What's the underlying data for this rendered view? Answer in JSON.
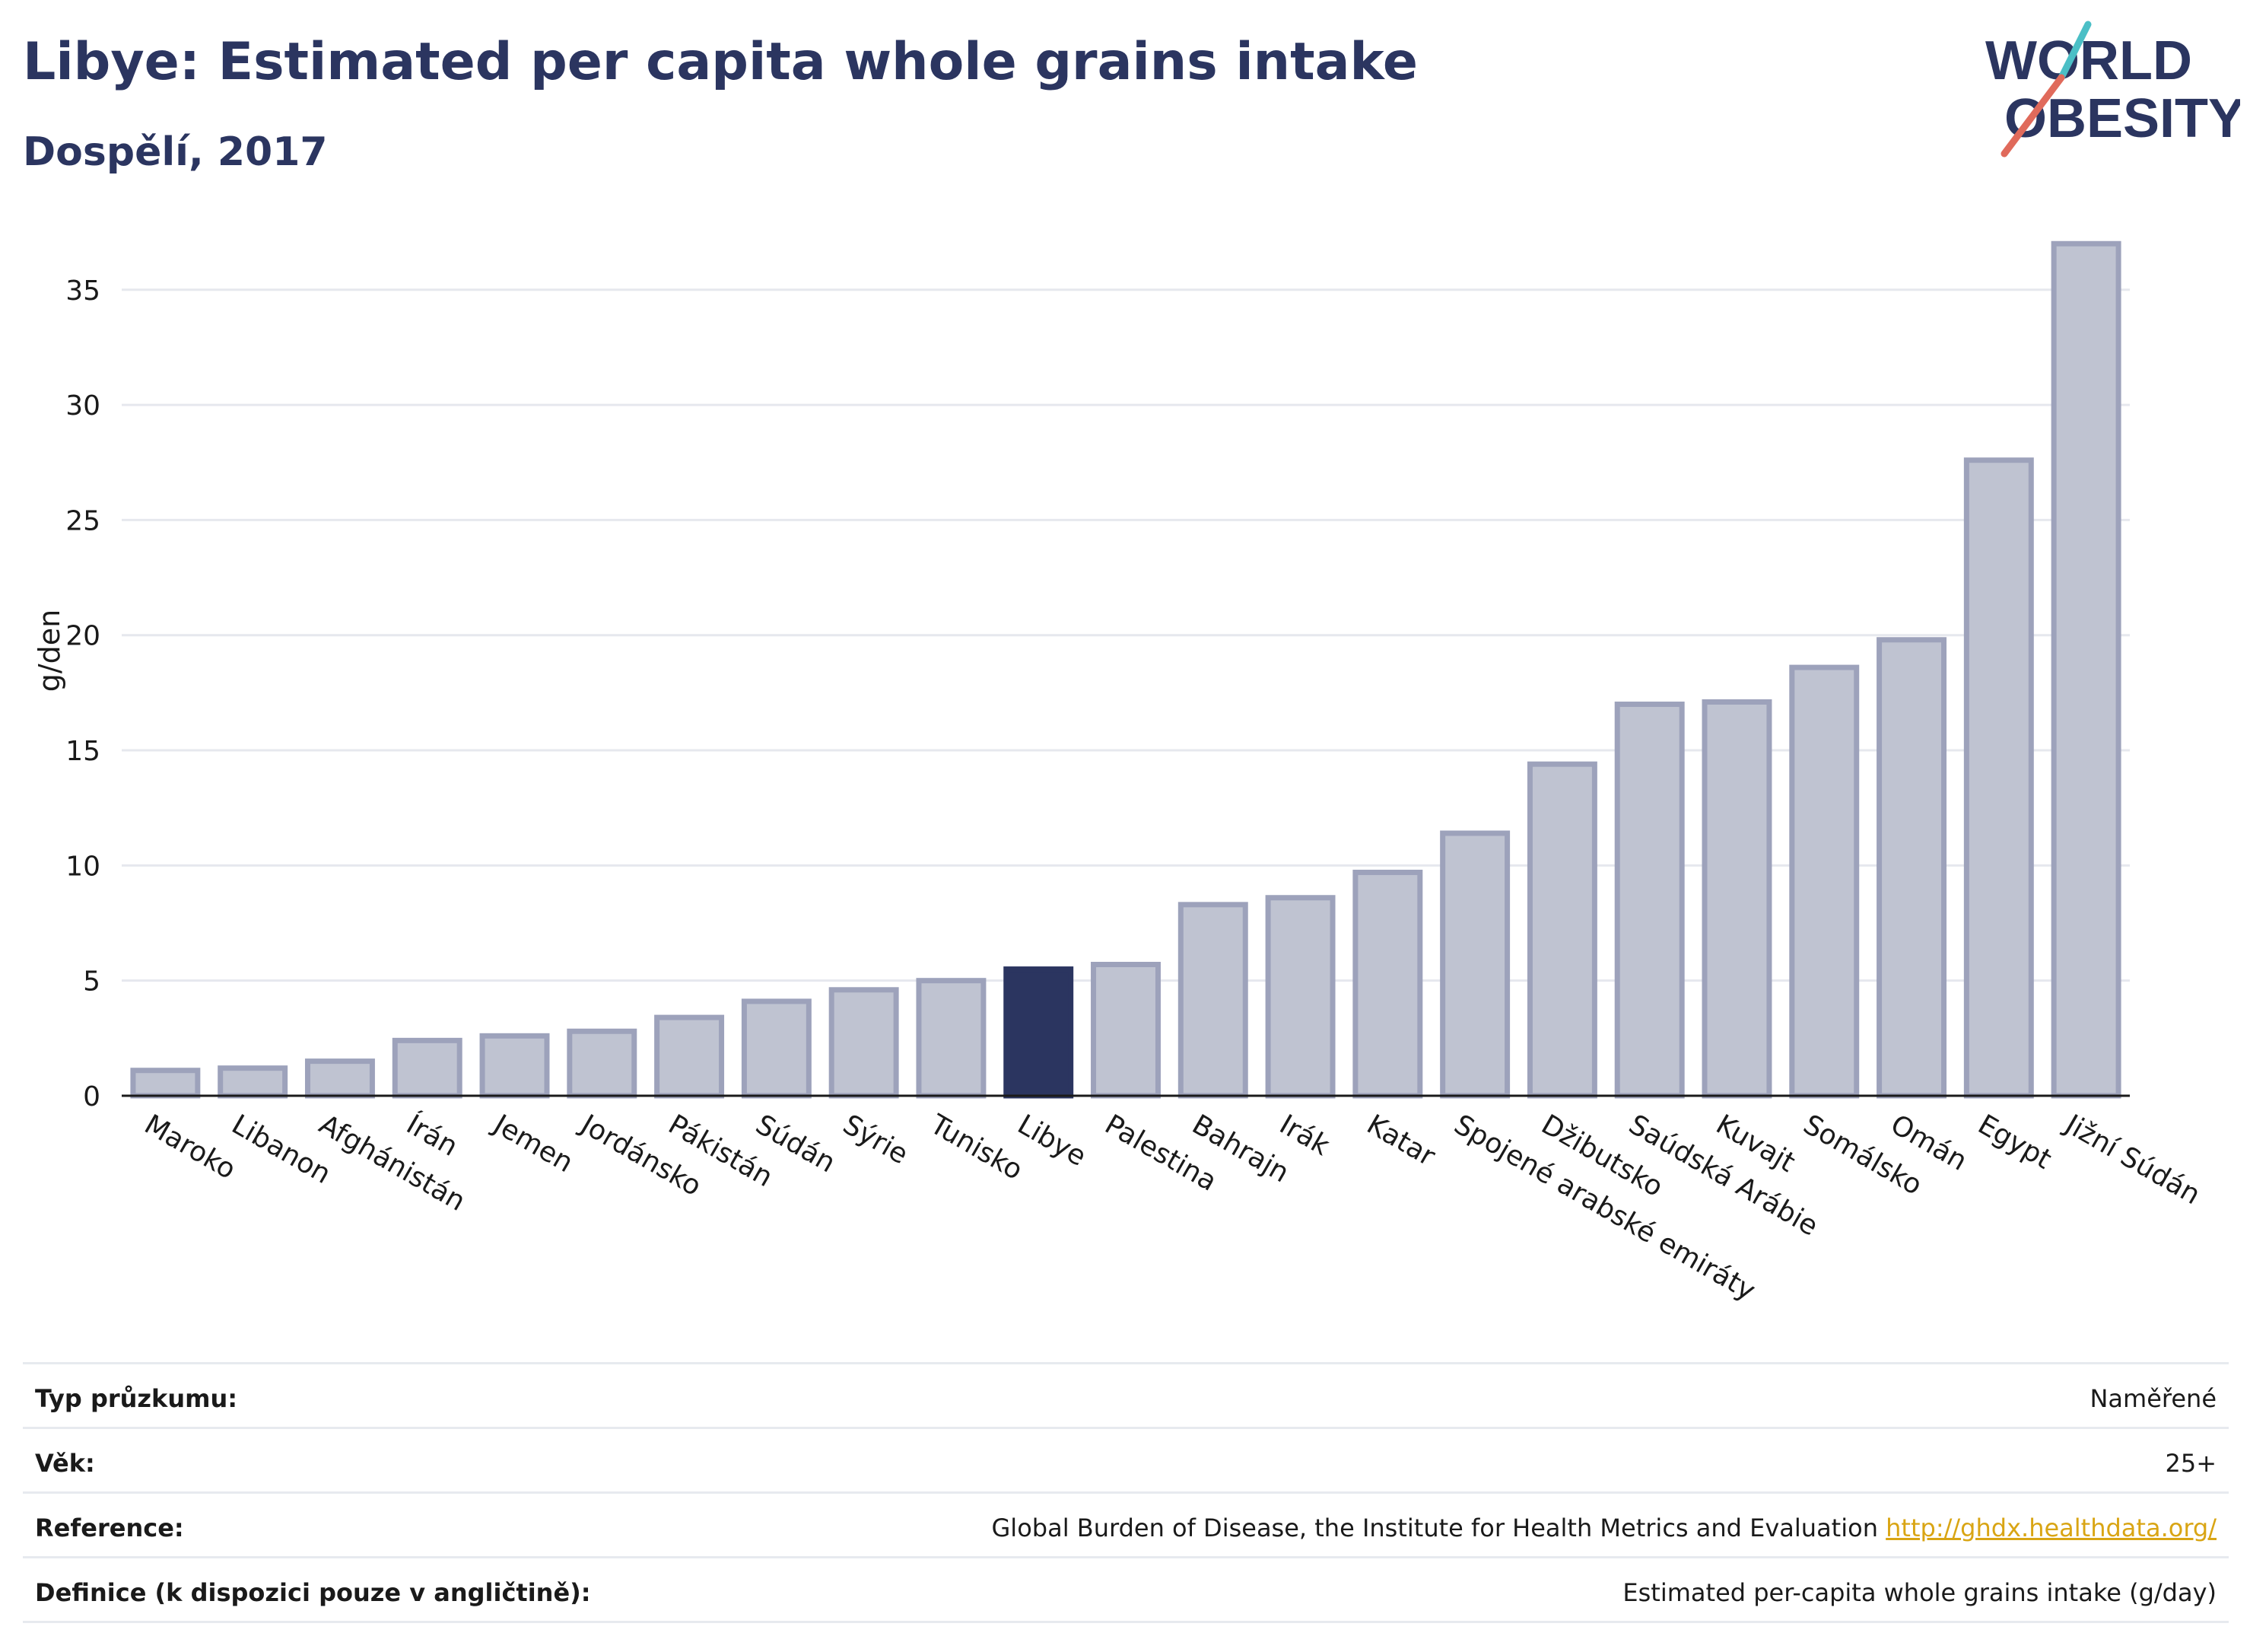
{
  "header": {
    "title": "Libye: Estimated per capita whole grains intake",
    "subtitle": "Dospělí, 2017"
  },
  "logo": {
    "line1": "WORLD",
    "line2": "OBESITY",
    "accent_colors": [
      "#4bbfc6",
      "#e06a5b"
    ]
  },
  "chart_data": {
    "type": "bar",
    "ylabel": "g/den",
    "ylim": [
      0,
      38
    ],
    "yticks": [
      0,
      5,
      10,
      15,
      20,
      25,
      30,
      35
    ],
    "grid": true,
    "highlight": "Libye",
    "colors": {
      "bar": "#bfc3d1",
      "bar_outline": "#9da2bb",
      "highlight": "#2b3560"
    },
    "categories": [
      "Maroko",
      "Libanon",
      "Afghánistán",
      "Írán",
      "Jemen",
      "Jordánsko",
      "Pákistán",
      "Súdán",
      "Sýrie",
      "Tunisko",
      "Libye",
      "Palestina",
      "Bahrajn",
      "Irák",
      "Katar",
      "Spojené arabské emiráty",
      "Džibutsko",
      "Saúdská Arábie",
      "Kuvajt",
      "Somálsko",
      "Omán",
      "Egypt",
      "Jižní Súdán"
    ],
    "values": [
      1.1,
      1.2,
      1.5,
      2.4,
      2.6,
      2.8,
      3.4,
      4.1,
      4.6,
      5.0,
      5.5,
      5.7,
      8.3,
      8.6,
      9.7,
      11.4,
      14.4,
      17.0,
      17.1,
      18.6,
      19.8,
      27.6,
      37.0
    ]
  },
  "info": [
    {
      "label": "Typ průzkumu:",
      "value": "Naměřené"
    },
    {
      "label": "Věk:",
      "value": "25+"
    },
    {
      "label": "Reference:",
      "value": "Global Burden of Disease, the Institute for Health Metrics and Evaluation",
      "link": "http://ghdx.healthdata.org/"
    },
    {
      "label": "Definice (k dispozici pouze v angličtině):",
      "value": "Estimated per-capita whole grains intake (g/day)"
    }
  ]
}
